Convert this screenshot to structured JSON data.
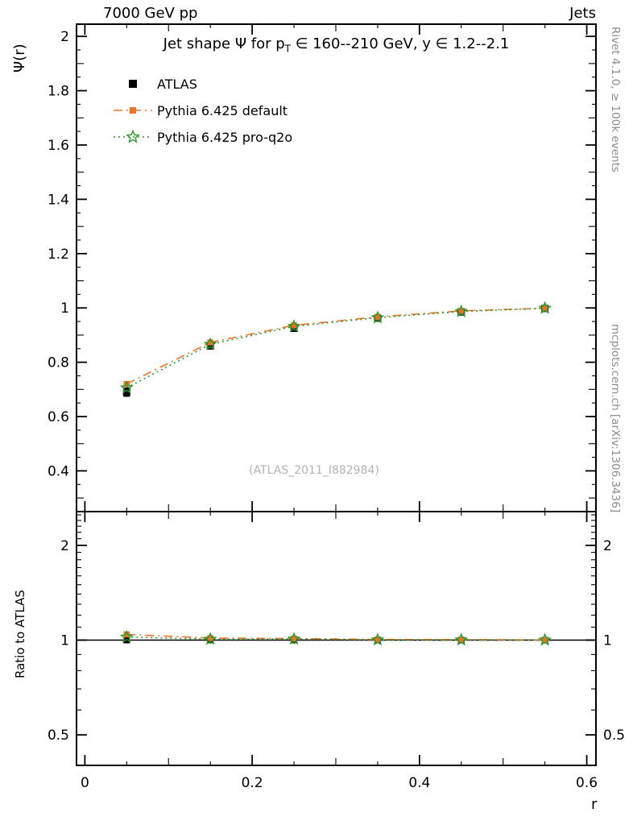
{
  "header": {
    "left": "7000 GeV pp",
    "right": "Jets"
  },
  "title": {
    "pre": "Jet shape Ψ for p",
    "sub": "T",
    "post": " ∈ 160--210 GeV, y ∈ 1.2--2.1"
  },
  "watermark": "(ATLAS_2011_I882984)",
  "side_notes": {
    "top": "Rivet 4.1.0, ≥ 100k events",
    "bottom": "mcplots.cern.ch [arXiv:1306.3436]"
  },
  "legend": {
    "items": [
      {
        "label": "ATLAS"
      },
      {
        "label": "Pythia 6.425 default"
      },
      {
        "label": "Pythia 6.425 pro-q2o"
      }
    ]
  },
  "axes": {
    "xlabel": "r",
    "main_ylabel": "Ψ(r)",
    "ratio_ylabel": "Ratio to ATLAS",
    "xticks": {
      "values": [
        0,
        0.2,
        0.4,
        0.6
      ],
      "labels": [
        "0",
        "0.2",
        "0.4",
        "0.6"
      ]
    },
    "main_yticks": {
      "values": [
        0.4,
        0.6,
        0.8,
        1,
        1.2,
        1.4,
        1.6,
        1.8,
        2
      ],
      "labels": [
        "0.4",
        "0.6",
        "0.8",
        "1",
        "1.2",
        "1.4",
        "1.6",
        "1.8",
        "2"
      ]
    },
    "ratio_yticks": {
      "values": [
        0.5,
        1,
        2
      ],
      "labels": [
        "0.5",
        "1",
        "2"
      ]
    }
  },
  "chart_data": {
    "type": "line",
    "title": "Jet shape Ψ for p_T ∈ 160--210 GeV, y ∈ 1.2--2.1",
    "xlabel": "r",
    "ylabel": "Ψ(r)",
    "x": [
      0.05,
      0.15,
      0.25,
      0.35,
      0.45,
      0.55
    ],
    "xlim": [
      -0.01,
      0.611
    ],
    "main_ylim": [
      0.25,
      2.045
    ],
    "ratio_ylim": [
      0.4,
      2.56
    ],
    "ratio_scale": "log",
    "grid": false,
    "legend_position": "top-left",
    "series": [
      {
        "name": "ATLAS",
        "marker": "filled-square",
        "color": "#000000",
        "values": [
          0.69,
          0.86,
          0.925,
          0.962,
          0.985,
          0.998
        ],
        "errors": [
          0.015,
          0.01,
          0.008,
          0.006,
          0.004,
          0.003
        ]
      },
      {
        "name": "Pythia 6.425 default",
        "marker": "filled-square",
        "line": "dash-dot",
        "color": "#e8752a",
        "values": [
          0.72,
          0.873,
          0.936,
          0.967,
          0.989,
          0.999
        ]
      },
      {
        "name": "Pythia 6.425 pro-q2o",
        "marker": "open-star",
        "line": "dotted",
        "color": "#2b9a2b",
        "values": [
          0.706,
          0.866,
          0.932,
          0.964,
          0.987,
          0.999
        ]
      }
    ],
    "ratio": {
      "ylabel": "Ratio to ATLAS",
      "reference": 1,
      "series": [
        {
          "name": "Pythia 6.425 default",
          "values": [
            1.043,
            1.015,
            1.012,
            1.005,
            1.004,
            1.001
          ]
        },
        {
          "name": "Pythia 6.425 pro-q2o",
          "values": [
            1.023,
            1.007,
            1.008,
            1.002,
            1.002,
            1.001
          ]
        }
      ]
    }
  }
}
